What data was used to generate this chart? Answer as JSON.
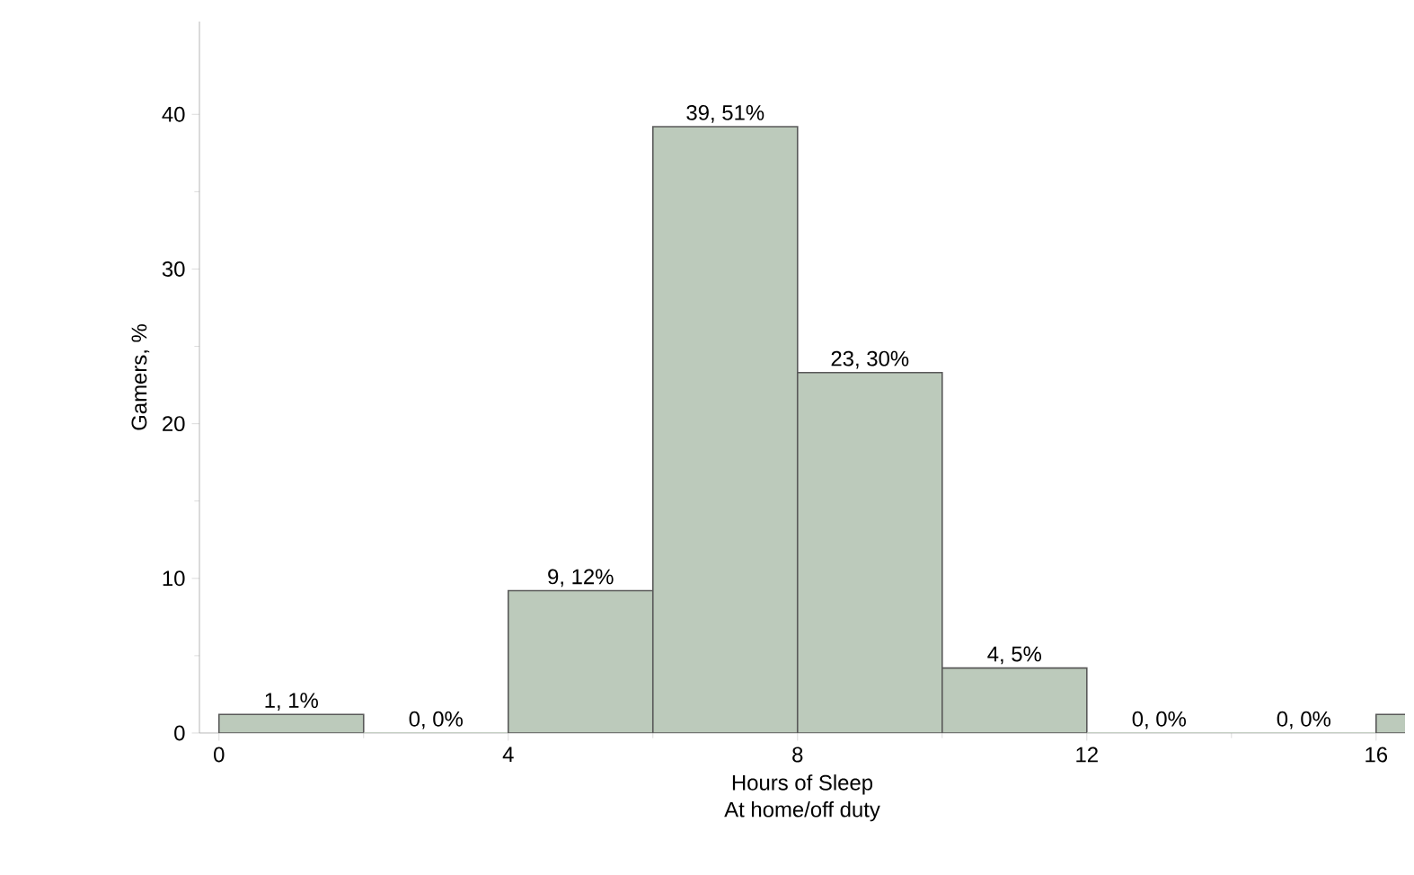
{
  "chart_data": {
    "type": "histogram",
    "xlabel": "Hours of Sleep",
    "subtitle": "At home/off duty",
    "ylabel": "Gamers, %",
    "bins": [
      0,
      2,
      4,
      6,
      8,
      10,
      12,
      14,
      16,
      18
    ],
    "values": [
      1.2,
      0,
      9.2,
      39.2,
      23.3,
      4.2,
      0,
      0,
      1.2
    ],
    "value_labels": [
      "1, 1%",
      "0, 0%",
      "9, 12%",
      "39, 51%",
      "23, 30%",
      "4, 5%",
      "0, 0%",
      "0, 0%",
      null
    ],
    "color": "#bccabb",
    "xlim": [
      -0.27,
      16.4
    ],
    "ylim": [
      0,
      46
    ],
    "xticks": [
      0,
      4,
      8,
      12,
      16
    ],
    "yticks": [
      0,
      10,
      20,
      30,
      40
    ],
    "grid": false
  }
}
